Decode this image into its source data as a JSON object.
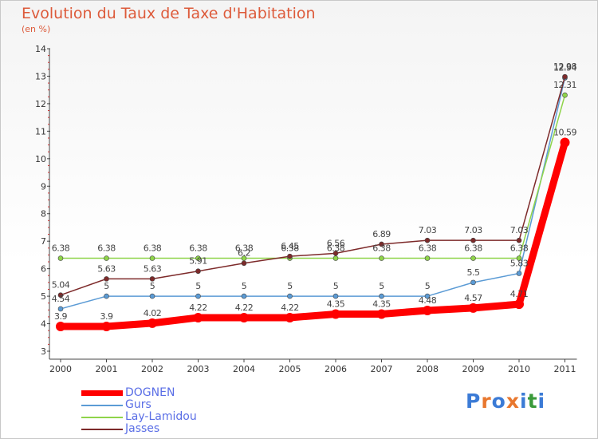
{
  "chart_data": {
    "type": "line",
    "title": "Evolution du Taux de Taxe d'Habitation",
    "subtitle": "(en %)",
    "xlabel": "",
    "ylabel": "",
    "categories": [
      "2000",
      "2001",
      "2002",
      "2003",
      "2004",
      "2005",
      "2006",
      "2007",
      "2008",
      "2009",
      "2010",
      "2011"
    ],
    "ylim": [
      3,
      14
    ],
    "yticks": [
      "3",
      "4",
      "5",
      "6",
      "7",
      "8",
      "9",
      "10",
      "11",
      "12",
      "13",
      "14"
    ],
    "grid": false,
    "legend_position": "bottom-left",
    "series": [
      {
        "name": "DOGNEN",
        "color": "#ff0000",
        "values": [
          3.9,
          3.9,
          4.02,
          4.22,
          4.22,
          4.22,
          4.35,
          4.35,
          4.48,
          4.57,
          4.71,
          10.59
        ],
        "labels": [
          "3.9",
          "3.9",
          "4.02",
          "4.22",
          "4.22",
          "4.22",
          "4.35",
          "4.35",
          "4.48",
          "4.57",
          "4.71",
          "10.59"
        ]
      },
      {
        "name": "Gurs",
        "color": "#5b9bd5",
        "values": [
          4.54,
          5,
          5,
          5,
          5,
          5,
          5,
          5,
          5,
          5.5,
          5.83,
          12.94
        ],
        "labels": [
          "4.54",
          "5",
          "5",
          "5",
          "5",
          "5",
          "5",
          "5",
          "5",
          "5.5",
          "5.83",
          "12.94"
        ]
      },
      {
        "name": "Lay-Lamidou",
        "color": "#8fd44a",
        "values": [
          6.38,
          6.38,
          6.38,
          6.38,
          6.38,
          6.38,
          6.38,
          6.38,
          6.38,
          6.38,
          6.38,
          12.31
        ],
        "labels": [
          "6.38",
          "6.38",
          "6.38",
          "6.38",
          "6.38",
          "6.38",
          "6.38",
          "6.38",
          "6.38",
          "6.38",
          "6.38",
          "12.31"
        ]
      },
      {
        "name": "Jasses",
        "color": "#7d2a2a",
        "values": [
          5.04,
          5.63,
          5.63,
          5.91,
          6.2,
          6.45,
          6.56,
          6.89,
          7.03,
          7.03,
          7.03,
          12.98
        ],
        "labels": [
          "5.04",
          "5.63",
          "5.63",
          "5.91",
          "6.2",
          "6.45",
          "6.56",
          "6.89",
          "7.03",
          "7.03",
          "7.03",
          "12.98"
        ]
      }
    ]
  },
  "logo": {
    "text": "Proxiti",
    "letter_colors": [
      "#3b7bd6",
      "#e8772e",
      "#3b7bd6",
      "#e8772e",
      "#3b7bd6",
      "#3a9a3a",
      "#3b7bd6"
    ]
  }
}
